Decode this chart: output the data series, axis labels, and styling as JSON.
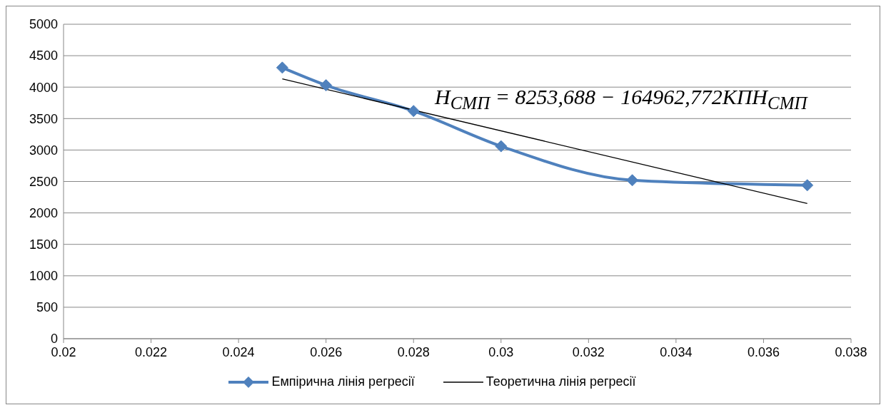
{
  "chart_data": {
    "type": "line",
    "x": [
      0.025,
      0.026,
      0.028,
      0.03,
      0.033,
      0.037
    ],
    "series": [
      {
        "name": "Емпірична лінія регресії",
        "color": "#4f81bd",
        "values": [
          4310,
          4030,
          3620,
          3060,
          2520,
          2440
        ],
        "marker": "diamond"
      },
      {
        "name": "Теоретична лінія регресії",
        "color": "#000000",
        "type": "line",
        "x": [
          0.025,
          0.037
        ],
        "values": [
          4130,
          2150
        ],
        "marker": "none"
      }
    ],
    "xlim": [
      0.02,
      0.038
    ],
    "xticks": [
      0.02,
      0.022,
      0.024,
      0.026,
      0.028,
      0.03,
      0.032,
      0.034,
      0.036,
      0.038
    ],
    "ylim": [
      0,
      5000
    ],
    "yticks": [
      0,
      500,
      1000,
      1500,
      2000,
      2500,
      3000,
      3500,
      4000,
      4500,
      5000
    ],
    "grid": "y",
    "legend": "bottom",
    "annotations": [
      "Н$_{СМП}$ = 8253,688 − 164962,772КПН$_{СМП}$"
    ]
  }
}
